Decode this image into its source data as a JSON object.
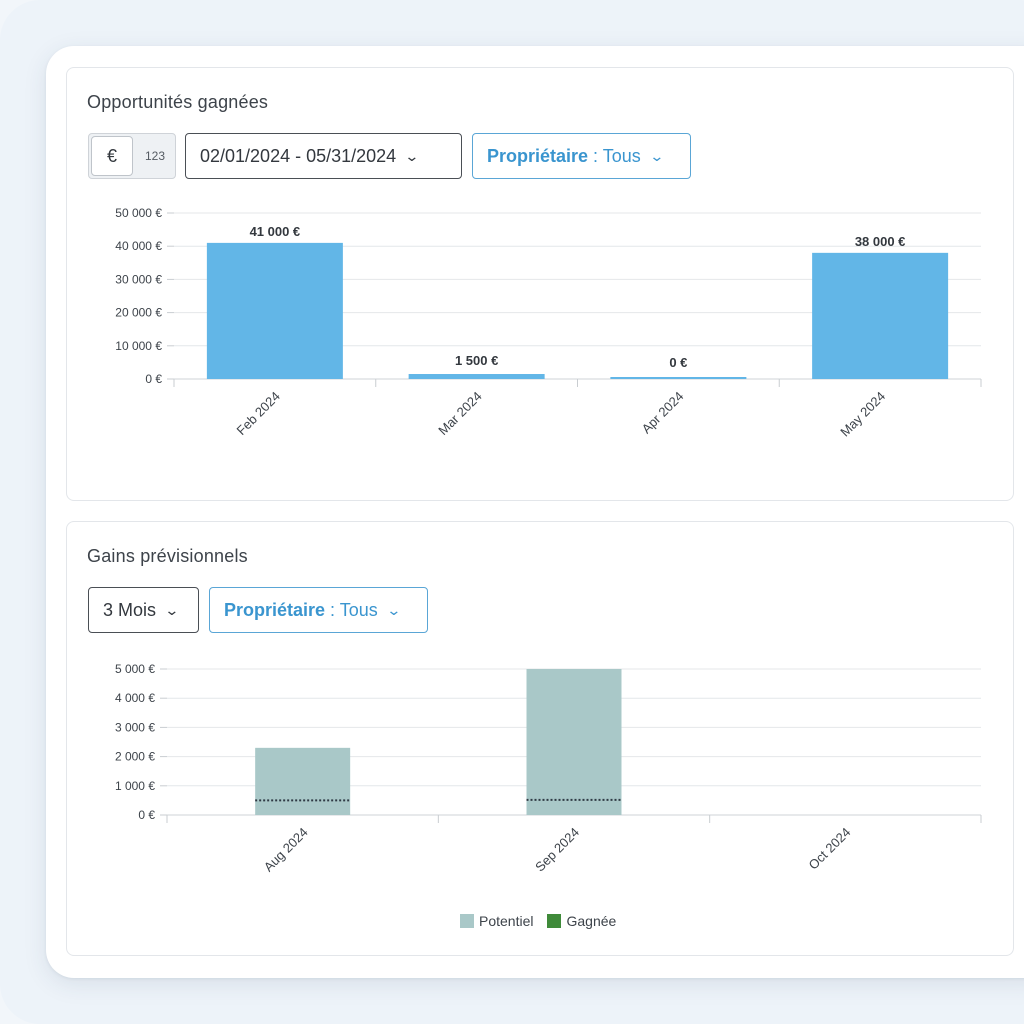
{
  "colors": {
    "won_bar": "#62b6e7",
    "potentiel": "#a9c8c8",
    "gagnee": "#3f8a3a",
    "accent": "#3a95cf"
  },
  "card1": {
    "title": "Opportunités gagnées",
    "currency_toggle": {
      "active": "€",
      "inactive": "123"
    },
    "date_range": "02/01/2024 - 05/31/2024",
    "owner_filter": {
      "label": "Propriétaire",
      "value": ": Tous"
    }
  },
  "card2": {
    "title": "Gains prévisionnels",
    "period": "3 Mois",
    "owner_filter": {
      "label": "Propriétaire",
      "value": ": Tous"
    }
  },
  "icons": {
    "chevron": "chevron-down-icon"
  },
  "chart_data": [
    {
      "type": "bar",
      "categories": [
        "Feb 2024",
        "Mar 2024",
        "Apr 2024",
        "May 2024"
      ],
      "values": [
        41000,
        1500,
        0,
        38000
      ],
      "data_labels": [
        "41 000 €",
        "1 500 €",
        "0 €",
        "38 000 €"
      ],
      "yticks": [
        0,
        10000,
        20000,
        30000,
        40000,
        50000
      ],
      "ytick_labels": [
        "0 €",
        "10 000 €",
        "20 000 €",
        "30 000 €",
        "40 000 €",
        "50 000 €"
      ],
      "ylim": [
        0,
        50000
      ],
      "grid": true,
      "legend": "none"
    },
    {
      "type": "bar",
      "categories": [
        "Aug 2024",
        "Sep 2024",
        "Oct 2024"
      ],
      "series": [
        {
          "name": "Potentiel",
          "values": [
            2300,
            5000,
            0
          ]
        },
        {
          "name": "Gagnée",
          "values": [
            0,
            0,
            0
          ]
        }
      ],
      "threshold_values": [
        500,
        520,
        0
      ],
      "yticks": [
        0,
        1000,
        2000,
        3000,
        4000,
        5000
      ],
      "ytick_labels": [
        "0 €",
        "1 000 €",
        "2 000 €",
        "3 000 €",
        "4 000 €",
        "5 000 €"
      ],
      "ylim": [
        0,
        5000
      ],
      "grid": true,
      "legend": "bottom-center"
    }
  ]
}
